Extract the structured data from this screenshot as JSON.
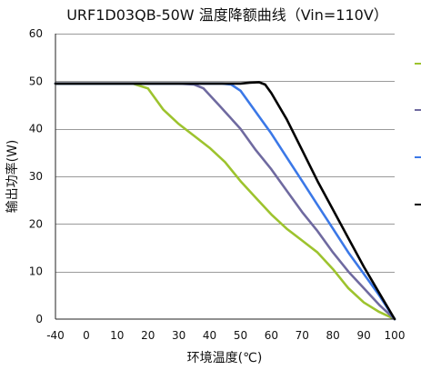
{
  "chart_data": {
    "type": "line",
    "title": "URF1D03QB-50W 温度降额曲线（Vin=110V）",
    "xlabel": "环境温度(℃)",
    "ylabel": "输出功率(W)",
    "xlim": [
      -40,
      100
    ],
    "ylim": [
      0,
      60
    ],
    "x_ticks": [
      "-40",
      "0",
      "10",
      "20",
      "30",
      "40",
      "50",
      "60",
      "70",
      "80",
      "90",
      "100"
    ],
    "x_tick_values": [
      -40,
      0,
      10,
      20,
      30,
      40,
      50,
      60,
      70,
      80,
      90,
      100
    ],
    "y_ticks": [
      "0",
      "10",
      "20",
      "30",
      "40",
      "50",
      "60"
    ],
    "y_tick_values": [
      0,
      10,
      20,
      30,
      40,
      50,
      60
    ],
    "grid": "horizontal",
    "legend_position": "right",
    "series": [
      {
        "color": "#9dc32e",
        "points": [
          [
            -40,
            49.5
          ],
          [
            15,
            49.5
          ],
          [
            20,
            48.5
          ],
          [
            25,
            44
          ],
          [
            30,
            41
          ],
          [
            35,
            38.5
          ],
          [
            40,
            36
          ],
          [
            45,
            33
          ],
          [
            50,
            29
          ],
          [
            55,
            25.5
          ],
          [
            60,
            22
          ],
          [
            65,
            19
          ],
          [
            70,
            16.5
          ],
          [
            75,
            14
          ],
          [
            80,
            10.5
          ],
          [
            85,
            6.5
          ],
          [
            90,
            3.5
          ],
          [
            95,
            1.5
          ],
          [
            100,
            0
          ]
        ]
      },
      {
        "color": "#6f6aa0",
        "points": [
          [
            -40,
            49.5
          ],
          [
            30,
            49.5
          ],
          [
            35,
            49.3
          ],
          [
            38,
            48.5
          ],
          [
            43,
            45
          ],
          [
            50,
            40
          ],
          [
            55,
            35.5
          ],
          [
            60,
            31.5
          ],
          [
            65,
            27
          ],
          [
            70,
            22.5
          ],
          [
            75,
            18.5
          ],
          [
            80,
            14
          ],
          [
            85,
            10
          ],
          [
            90,
            6.5
          ],
          [
            95,
            3
          ],
          [
            100,
            0
          ]
        ]
      },
      {
        "color": "#3b78e7",
        "points": [
          [
            -40,
            49.5
          ],
          [
            44,
            49.5
          ],
          [
            47,
            49.3
          ],
          [
            50,
            48
          ],
          [
            55,
            43.5
          ],
          [
            60,
            39
          ],
          [
            65,
            34
          ],
          [
            70,
            29
          ],
          [
            75,
            24
          ],
          [
            80,
            19
          ],
          [
            85,
            14
          ],
          [
            90,
            9.5
          ],
          [
            95,
            5
          ],
          [
            100,
            0
          ]
        ]
      },
      {
        "color": "#000000",
        "points": [
          [
            -40,
            49.5
          ],
          [
            50,
            49.5
          ],
          [
            53,
            49.7
          ],
          [
            56,
            49.8
          ],
          [
            58,
            49.3
          ],
          [
            60,
            47.5
          ],
          [
            65,
            42
          ],
          [
            70,
            35.5
          ],
          [
            75,
            29
          ],
          [
            80,
            23
          ],
          [
            85,
            17
          ],
          [
            90,
            11
          ],
          [
            95,
            5.5
          ],
          [
            100,
            0
          ]
        ]
      }
    ]
  }
}
